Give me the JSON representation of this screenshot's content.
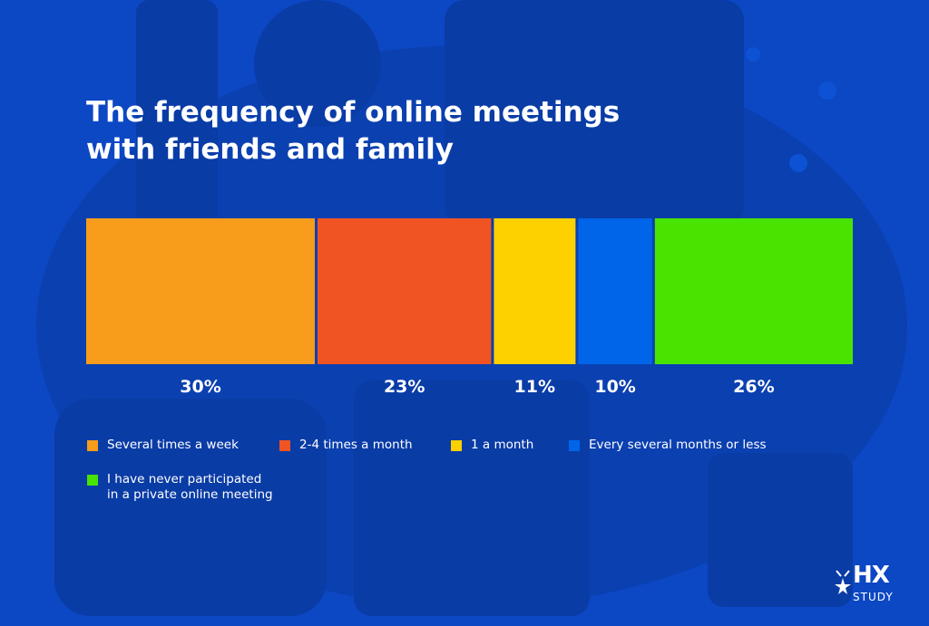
{
  "title_lines": [
    "The frequency of online meetings",
    "with friends and family"
  ],
  "chart_data": {
    "type": "bar",
    "orientation": "horizontal-stacked-100",
    "title": "The frequency of online meetings with friends and family",
    "unit": "%",
    "series": [
      {
        "name": "Several times a week",
        "value": 30,
        "label": "30%",
        "color": "#f79c1b"
      },
      {
        "name": "2-4 times a month",
        "value": 23,
        "label": "23%",
        "color": "#f05423"
      },
      {
        "name": "1 a month",
        "value": 11,
        "label": "11%",
        "color": "#fdd000"
      },
      {
        "name": "Every several months or less",
        "value": 10,
        "label": "10%",
        "color": "#0065e8"
      },
      {
        "name": "I have never participated in a private online meeting",
        "value": 26,
        "label": "26%",
        "color": "#49e300"
      }
    ],
    "legend_position": "bottom"
  },
  "legend": [
    {
      "lines": [
        "Several times a week"
      ],
      "color": "#f79c1b"
    },
    {
      "lines": [
        "2-4 times a month"
      ],
      "color": "#f05423"
    },
    {
      "lines": [
        "1 a month"
      ],
      "color": "#fdd000"
    },
    {
      "lines": [
        "Every several months or less"
      ],
      "color": "#0065e8"
    },
    {
      "lines": [
        "I have never participated",
        "in a private online meeting"
      ],
      "color": "#49e300"
    }
  ],
  "logo": {
    "mark": "HX",
    "sub": "STUDY"
  },
  "colors": {
    "background": "#0c47c4",
    "text": "#ffffff"
  }
}
